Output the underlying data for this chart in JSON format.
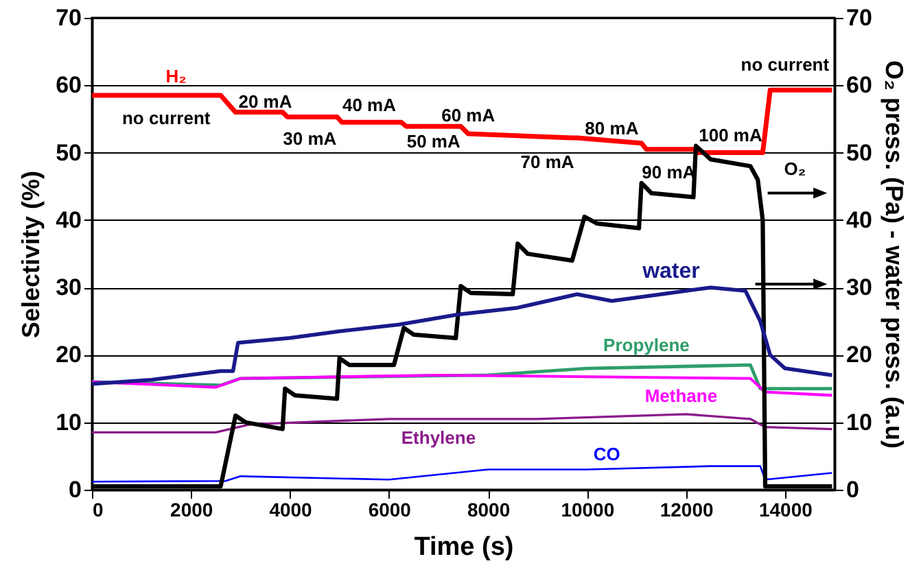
{
  "chart_data": {
    "type": "line",
    "xlabel": "Time (s)",
    "ylabel": "Selectivity (%)",
    "y2label": "O₂ press. (Pa) - water press. (a.u)",
    "xlim": [
      0,
      15000
    ],
    "xticks": [
      0,
      2000,
      4000,
      6000,
      8000,
      10000,
      12000,
      14000
    ],
    "ylim": [
      0,
      70
    ],
    "yticks": [
      0,
      10,
      20,
      30,
      40,
      50,
      60,
      70
    ],
    "y2lim": [
      0,
      70
    ],
    "y2ticks": [
      0,
      10,
      20,
      30,
      40,
      50,
      60,
      70
    ],
    "grid": "y",
    "marker": "none",
    "line_style": "solid",
    "series": [
      {
        "name": "H₂",
        "color": "#ff0000",
        "x": [
          0,
          2600,
          2900,
          3850,
          3950,
          4950,
          5050,
          6250,
          6350,
          7450,
          7600,
          9700,
          9800,
          11100,
          11200,
          12150,
          12250,
          13550,
          13700,
          14950
        ],
        "values": [
          58.5,
          58.5,
          56,
          56,
          55.3,
          55.3,
          54.5,
          54.5,
          53.9,
          53.9,
          52.8,
          52.2,
          52.2,
          51.4,
          50.5,
          50.5,
          50,
          50,
          59.3,
          59.3
        ]
      },
      {
        "name": "O₂",
        "color": "#000000",
        "axis": "y2",
        "x": [
          0,
          2600,
          2900,
          3100,
          3850,
          3900,
          4100,
          4950,
          5000,
          5200,
          6100,
          6300,
          6500,
          7350,
          7450,
          7650,
          8500,
          8600,
          8800,
          9700,
          9950,
          10200,
          11050,
          11100,
          11300,
          12150,
          12200,
          12500,
          13300,
          13450,
          13550,
          13600,
          14950
        ],
        "values": [
          0.5,
          0.5,
          11,
          10,
          9,
          15,
          14,
          13.5,
          19.5,
          18.5,
          18.5,
          24,
          23,
          22.5,
          30.2,
          29.2,
          29,
          36.5,
          35,
          34,
          40.5,
          39.5,
          38.8,
          45.5,
          44,
          43.4,
          51,
          49,
          48,
          46,
          40,
          0.5,
          0.5
        ]
      },
      {
        "name": "water",
        "color": "#1a1a8c",
        "axis": "y2",
        "x": [
          0,
          1200,
          2600,
          2850,
          2950,
          4000,
          5000,
          6200,
          7400,
          8600,
          9800,
          10500,
          11500,
          12500,
          13200,
          13500,
          13700,
          14000,
          14950
        ],
        "values": [
          15.7,
          16.3,
          17.6,
          17.6,
          21.8,
          22.5,
          23.5,
          24.5,
          26,
          27,
          29,
          28,
          29,
          30,
          29.5,
          25,
          20,
          18,
          17
        ]
      },
      {
        "name": "Propylene",
        "color": "#2e9e6a",
        "x": [
          0,
          2600,
          3000,
          8000,
          10000,
          13300,
          13500,
          14950
        ],
        "values": [
          16,
          15.5,
          16.5,
          17,
          18,
          18.5,
          15,
          15
        ]
      },
      {
        "name": "Methane",
        "color": "#ff00ff",
        "x": [
          0,
          2500,
          3000,
          7000,
          13300,
          13600,
          14950
        ],
        "values": [
          16,
          15.2,
          16.5,
          17,
          16.5,
          14.5,
          14
        ]
      },
      {
        "name": "Ethylene",
        "color": "#8b1a8b",
        "x": [
          0,
          2500,
          3200,
          6000,
          9000,
          12000,
          13300,
          13600,
          14950
        ],
        "values": [
          8.5,
          8.5,
          9.7,
          10.5,
          10.5,
          11.2,
          10.5,
          9.3,
          9
        ]
      },
      {
        "name": "CO",
        "color": "#0000ff",
        "x": [
          0,
          2700,
          3000,
          6000,
          8000,
          10000,
          12500,
          13500,
          13600,
          14950
        ],
        "values": [
          1.2,
          1.3,
          2,
          1.5,
          3,
          3,
          3.5,
          3.5,
          1.5,
          2.5
        ]
      }
    ],
    "annotations": [
      "no current",
      "20 mA",
      "30 mA",
      "40 mA",
      "50 mA",
      "60 mA",
      "70 mA",
      "80 mA",
      "90 mA",
      "100 mA",
      "no current"
    ]
  }
}
